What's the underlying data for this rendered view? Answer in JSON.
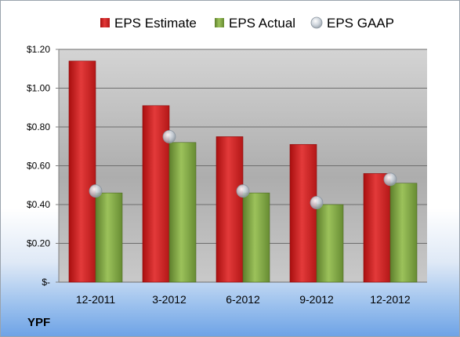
{
  "ticker": "YPF",
  "chart_data": {
    "type": "bar",
    "categories": [
      "12-2011",
      "3-2012",
      "6-2012",
      "9-2012",
      "12-2012"
    ],
    "series": [
      {
        "name": "EPS Estimate",
        "values": [
          1.14,
          0.91,
          0.75,
          0.71,
          0.56
        ],
        "color": "#d42a2a"
      },
      {
        "name": "EPS Actual",
        "values": [
          0.46,
          0.72,
          0.46,
          0.4,
          0.51
        ],
        "color": "#7ea343"
      }
    ],
    "markers": {
      "name": "EPS GAAP",
      "values": [
        0.47,
        0.75,
        0.47,
        0.41,
        0.53
      ],
      "color": "#b9c2cc"
    },
    "ylim": [
      0,
      1.2
    ],
    "yticks": [
      0,
      0.2,
      0.4,
      0.6,
      0.8,
      1.0,
      1.2
    ],
    "ytick_labels": [
      "$-",
      "$0.20",
      "$0.40",
      "$0.60",
      "$0.80",
      "$1.00",
      "$1.20"
    ],
    "grid": true,
    "legend_position": "top"
  }
}
